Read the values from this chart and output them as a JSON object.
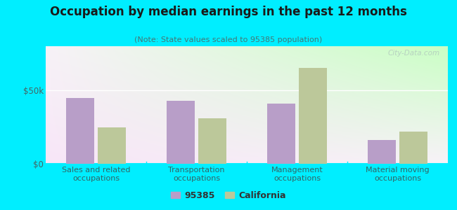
{
  "title": "Occupation by median earnings in the past 12 months",
  "subtitle": "(Note: State values scaled to 95385 population)",
  "categories": [
    "Sales and related\noccupations",
    "Transportation\noccupations",
    "Management\noccupations",
    "Material moving\noccupations"
  ],
  "values_95385": [
    45000,
    43000,
    41000,
    16000
  ],
  "values_california": [
    25000,
    31000,
    65000,
    22000
  ],
  "color_95385": "#b89ec8",
  "color_california": "#bcc89a",
  "ylim": [
    0,
    80000
  ],
  "yticks": [
    0,
    50000
  ],
  "ytick_labels": [
    "$0",
    "$50k"
  ],
  "background_outer": "#00eeff",
  "legend_label_95385": "95385",
  "legend_label_california": "California",
  "bar_width": 0.28,
  "watermark": "City-Data.com"
}
